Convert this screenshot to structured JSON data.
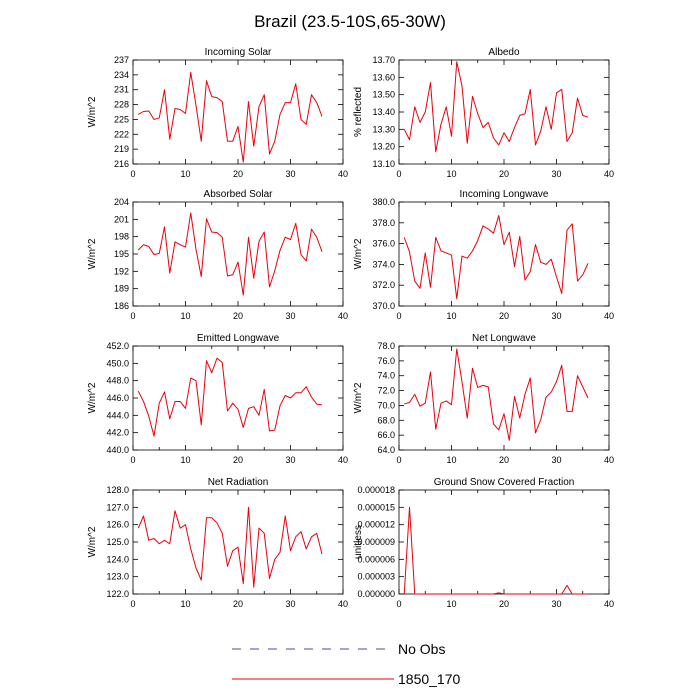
{
  "figure_title": "Brazil (23.5-10S,65-30W)",
  "colors": {
    "model": "#e8000b",
    "obs": "#4a4aa8",
    "axis": "#000000"
  },
  "legend": [
    {
      "label": "No Obs",
      "style": "dashed",
      "color": "#4a4aa8"
    },
    {
      "label": "1850_170",
      "style": "solid",
      "color": "#e8000b"
    }
  ],
  "chart_data": [
    {
      "type": "line",
      "title": "Incoming Solar",
      "ylabel": "W/m^2",
      "xlim": [
        0,
        40
      ],
      "ylim": [
        216,
        237
      ],
      "xticks": [
        "0",
        "10",
        "20",
        "30",
        "40"
      ],
      "yticks": [
        "216",
        "219",
        "222",
        "225",
        "228",
        "231",
        "234",
        "237"
      ],
      "series": [
        {
          "name": "1850_170",
          "x": [
            1,
            2,
            3,
            4,
            5,
            6,
            7,
            8,
            9,
            10,
            11,
            12,
            13,
            14,
            15,
            16,
            17,
            18,
            19,
            20,
            21,
            22,
            23,
            24,
            25,
            26,
            27,
            28,
            29,
            30,
            31,
            32,
            33,
            34,
            35,
            36
          ],
          "values": [
            226.0,
            226.6,
            226.7,
            225.0,
            225.3,
            231.0,
            221.0,
            227.2,
            227.0,
            226.2,
            234.5,
            227.8,
            220.6,
            232.8,
            229.6,
            229.4,
            228.6,
            220.6,
            220.6,
            223.6,
            216.4,
            228.6,
            219.6,
            227.6,
            230.0,
            218.0,
            220.6,
            226.0,
            228.4,
            228.4,
            232.2,
            225.0,
            224.0,
            230.0,
            228.4,
            225.6
          ]
        }
      ]
    },
    {
      "type": "line",
      "title": "Albedo",
      "ylabel": "% reflected",
      "xlim": [
        0,
        40
      ],
      "ylim": [
        13.1,
        13.7
      ],
      "xticks": [
        "0",
        "10",
        "20",
        "30",
        "40"
      ],
      "yticks": [
        "13.10",
        "13.20",
        "13.30",
        "13.40",
        "13.50",
        "13.60",
        "13.70"
      ],
      "series": [
        {
          "name": "1850_170",
          "x": [
            1,
            2,
            3,
            4,
            5,
            6,
            7,
            8,
            9,
            10,
            11,
            12,
            13,
            14,
            15,
            16,
            17,
            18,
            19,
            20,
            21,
            22,
            23,
            24,
            25,
            26,
            27,
            28,
            29,
            30,
            31,
            32,
            33,
            34,
            35,
            36
          ],
          "values": [
            13.3,
            13.24,
            13.43,
            13.34,
            13.4,
            13.57,
            13.17,
            13.33,
            13.43,
            13.26,
            13.69,
            13.55,
            13.22,
            13.49,
            13.39,
            13.31,
            13.34,
            13.25,
            13.21,
            13.28,
            13.23,
            13.31,
            13.38,
            13.39,
            13.53,
            13.21,
            13.29,
            13.43,
            13.3,
            13.51,
            13.53,
            13.23,
            13.28,
            13.48,
            13.38,
            13.37
          ]
        }
      ]
    },
    {
      "type": "line",
      "title": "Absorbed Solar",
      "ylabel": "W/m^2",
      "xlim": [
        0,
        40
      ],
      "ylim": [
        186,
        204
      ],
      "xticks": [
        "0",
        "10",
        "20",
        "30",
        "40"
      ],
      "yticks": [
        "186",
        "189",
        "192",
        "195",
        "198",
        "201",
        "204"
      ],
      "series": [
        {
          "name": "1850_170",
          "x": [
            1,
            2,
            3,
            4,
            5,
            6,
            7,
            8,
            9,
            10,
            11,
            12,
            13,
            14,
            15,
            16,
            17,
            18,
            19,
            20,
            21,
            22,
            23,
            24,
            25,
            26,
            27,
            28,
            29,
            30,
            31,
            32,
            33,
            34,
            35,
            36
          ],
          "values": [
            195.7,
            196.6,
            196.3,
            194.9,
            195.1,
            199.7,
            191.7,
            197.1,
            196.6,
            196.2,
            202.1,
            195.8,
            191.1,
            201.1,
            198.8,
            198.7,
            197.9,
            191.2,
            191.4,
            193.6,
            187.9,
            197.9,
            190.8,
            197.2,
            198.8,
            189.3,
            192.1,
            195.6,
            197.9,
            197.5,
            200.3,
            194.9,
            193.8,
            199.3,
            197.9,
            195.4
          ]
        }
      ]
    },
    {
      "type": "line",
      "title": "Incoming Longwave",
      "ylabel": "W/m^2",
      "xlim": [
        0,
        40
      ],
      "ylim": [
        370.0,
        380.0
      ],
      "xticks": [
        "0",
        "10",
        "20",
        "30",
        "40"
      ],
      "yticks": [
        "370.0",
        "372.0",
        "374.0",
        "376.0",
        "378.0",
        "380.0"
      ],
      "series": [
        {
          "name": "1850_170",
          "x": [
            1,
            2,
            3,
            4,
            5,
            6,
            7,
            8,
            9,
            10,
            11,
            12,
            13,
            14,
            15,
            16,
            17,
            18,
            19,
            20,
            21,
            22,
            23,
            24,
            25,
            26,
            27,
            28,
            29,
            30,
            31,
            32,
            33,
            34,
            35,
            36
          ],
          "values": [
            376.6,
            375.2,
            372.4,
            371.7,
            375.1,
            371.8,
            376.6,
            375.3,
            375.1,
            374.9,
            370.7,
            374.8,
            374.6,
            375.3,
            376.3,
            377.7,
            377.4,
            377.0,
            378.7,
            375.9,
            377.1,
            373.8,
            376.7,
            372.5,
            373.3,
            375.9,
            374.2,
            374.0,
            374.5,
            372.8,
            371.2,
            377.3,
            377.9,
            372.4,
            373.0,
            374.1
          ]
        }
      ]
    },
    {
      "type": "line",
      "title": "Emitted Longwave",
      "ylabel": "W/m^2",
      "xlim": [
        0,
        40
      ],
      "ylim": [
        440.0,
        452.0
      ],
      "xticks": [
        "0",
        "10",
        "20",
        "30",
        "40"
      ],
      "yticks": [
        "440.0",
        "442.0",
        "444.0",
        "446.0",
        "448.0",
        "450.0",
        "452.0"
      ],
      "series": [
        {
          "name": "1850_170",
          "x": [
            1,
            2,
            3,
            4,
            5,
            6,
            7,
            8,
            9,
            10,
            11,
            12,
            13,
            14,
            15,
            16,
            17,
            18,
            19,
            20,
            21,
            22,
            23,
            24,
            25,
            26,
            27,
            28,
            29,
            30,
            31,
            32,
            33,
            34,
            35,
            36
          ],
          "values": [
            446.8,
            445.6,
            443.9,
            441.6,
            445.4,
            446.7,
            443.6,
            445.6,
            445.6,
            444.8,
            448.3,
            448.0,
            442.9,
            450.3,
            448.9,
            450.6,
            450.1,
            444.5,
            445.4,
            444.7,
            442.6,
            444.8,
            445.0,
            444.0,
            447.0,
            442.2,
            442.3,
            445.1,
            446.3,
            446.0,
            446.6,
            446.6,
            447.3,
            446.1,
            445.3,
            445.2
          ]
        }
      ]
    },
    {
      "type": "line",
      "title": "Net Longwave",
      "ylabel": "W/m^2",
      "xlim": [
        0,
        40
      ],
      "ylim": [
        64.0,
        78.0
      ],
      "xticks": [
        "0",
        "10",
        "20",
        "30",
        "40"
      ],
      "yticks": [
        "64.0",
        "66.0",
        "68.0",
        "70.0",
        "72.0",
        "74.0",
        "76.0",
        "78.0"
      ],
      "series": [
        {
          "name": "1850_170",
          "x": [
            1,
            2,
            3,
            4,
            5,
            6,
            7,
            8,
            9,
            10,
            11,
            12,
            13,
            14,
            15,
            16,
            17,
            18,
            19,
            20,
            21,
            22,
            23,
            24,
            25,
            26,
            27,
            28,
            29,
            30,
            31,
            32,
            33,
            34,
            35,
            36
          ],
          "values": [
            70.2,
            70.4,
            71.5,
            69.9,
            70.3,
            74.5,
            66.8,
            70.3,
            70.6,
            70.1,
            77.6,
            73.2,
            68.3,
            75.0,
            72.4,
            72.7,
            72.5,
            67.5,
            66.7,
            68.9,
            65.3,
            71.2,
            68.3,
            71.5,
            73.7,
            66.3,
            68.1,
            71.1,
            71.8,
            73.2,
            75.4,
            69.2,
            69.2,
            74.0,
            72.5,
            71.0
          ]
        }
      ]
    },
    {
      "type": "line",
      "title": "Net Radiation",
      "ylabel": "W/m^2",
      "xlim": [
        0,
        40
      ],
      "ylim": [
        122.0,
        128.0
      ],
      "xticks": [
        "0",
        "10",
        "20",
        "30",
        "40"
      ],
      "yticks": [
        "122.0",
        "123.0",
        "124.0",
        "125.0",
        "126.0",
        "127.0",
        "128.0"
      ],
      "series": [
        {
          "name": "1850_170",
          "x": [
            1,
            2,
            3,
            4,
            5,
            6,
            7,
            8,
            9,
            10,
            11,
            12,
            13,
            14,
            15,
            16,
            17,
            18,
            19,
            20,
            21,
            22,
            23,
            24,
            25,
            26,
            27,
            28,
            29,
            30,
            31,
            32,
            33,
            34,
            35,
            36
          ],
          "values": [
            125.8,
            126.5,
            125.1,
            125.2,
            124.9,
            125.1,
            124.9,
            126.8,
            125.8,
            126.0,
            124.6,
            123.5,
            122.8,
            126.4,
            126.4,
            126.1,
            125.5,
            123.6,
            124.5,
            124.7,
            122.6,
            127.0,
            122.4,
            125.8,
            125.5,
            122.9,
            124.0,
            124.4,
            126.5,
            124.5,
            125.3,
            125.6,
            124.6,
            125.3,
            125.5,
            124.3
          ]
        }
      ]
    },
    {
      "type": "line",
      "title": "Ground Snow Covered Fraction",
      "ylabel": "unitless",
      "xlim": [
        0,
        40
      ],
      "ylim": [
        0,
        1.8e-05
      ],
      "xticks": [
        "0",
        "10",
        "20",
        "30",
        "40"
      ],
      "yticks": [
        "0.000000",
        "0.000003",
        "0.000006",
        "0.000009",
        "0.000012",
        "0.000015",
        "0.000018"
      ],
      "series": [
        {
          "name": "1850_170",
          "x": [
            1,
            2,
            3,
            4,
            5,
            6,
            7,
            8,
            9,
            10,
            11,
            12,
            13,
            14,
            15,
            16,
            17,
            18,
            19,
            20,
            21,
            22,
            23,
            24,
            25,
            26,
            27,
            28,
            29,
            30,
            31,
            32,
            33,
            34,
            35,
            36
          ],
          "values": [
            0,
            1.5e-05,
            0,
            0,
            0,
            0,
            0,
            0,
            0,
            0,
            0,
            0,
            0,
            0,
            0,
            0,
            0,
            0,
            2e-07,
            0,
            0,
            0,
            0,
            0,
            0,
            0,
            0,
            0,
            0,
            0,
            0,
            1.5e-06,
            0,
            0,
            0,
            0
          ]
        }
      ]
    }
  ]
}
